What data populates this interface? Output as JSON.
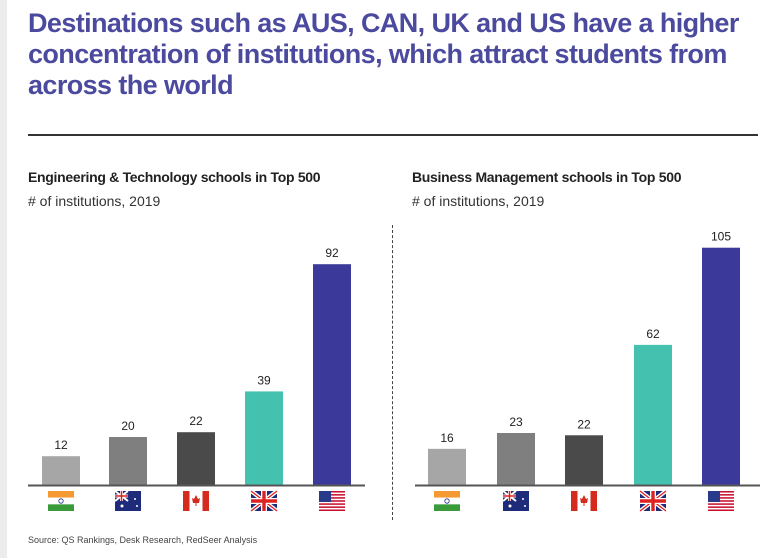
{
  "title": "Destinations such as AUS, CAN, UK and US have a higher concentration of institutions, which attract students from across the world",
  "source": "Source: QS Rankings, Desk Research, RedSeer Analysis",
  "colors": {
    "IND": "#a6a6a6",
    "AUS": "#7f7f7f",
    "CAN": "#4a4a4a",
    "UK": "#45c1b0",
    "US": "#3b3a9b"
  },
  "chart_data": [
    {
      "type": "bar",
      "title": "Engineering & Technology schools in Top 500",
      "subtitle": "# of institutions, 2019",
      "categories": [
        "India",
        "Australia",
        "Canada",
        "UK",
        "US"
      ],
      "icons": [
        "india-flag-icon",
        "australia-flag-icon",
        "canada-flag-icon",
        "uk-flag-icon",
        "us-flag-icon"
      ],
      "values": [
        12,
        20,
        22,
        39,
        92
      ]
    },
    {
      "type": "bar",
      "title": "Business Management schools in Top 500",
      "subtitle": "# of institutions, 2019",
      "categories": [
        "India",
        "Australia",
        "Canada",
        "UK",
        "US"
      ],
      "icons": [
        "india-flag-icon",
        "australia-flag-icon",
        "canada-flag-icon",
        "uk-flag-icon",
        "us-flag-icon"
      ],
      "values": [
        16,
        23,
        22,
        62,
        105
      ]
    }
  ]
}
